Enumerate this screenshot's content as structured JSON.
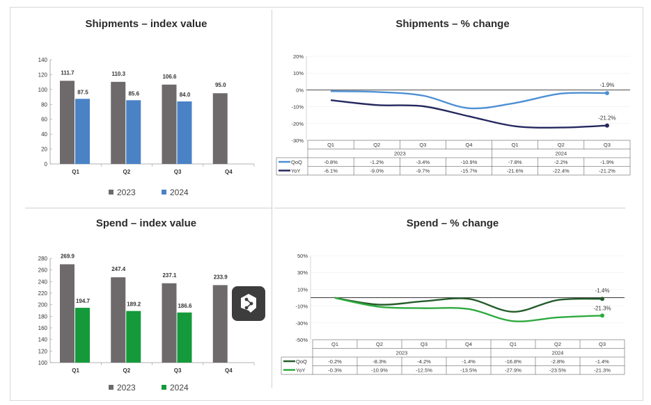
{
  "colors": {
    "gray": "#6e6a6b",
    "blue": "#4a82c6",
    "green": "#159a3b",
    "navy": "#24285e",
    "light_blue": "#4c8fd3",
    "dark_green": "#245c2a",
    "bright_green": "#2daa3e"
  },
  "panels": [
    {
      "title": "Shipments – index value"
    },
    {
      "title": "Shipments – % change"
    },
    {
      "title": "Spend – index value"
    },
    {
      "title": "Spend – % change"
    }
  ],
  "chart_data": [
    {
      "type": "bar",
      "title": "Shipments – index value",
      "categories": [
        "Q1",
        "Q2",
        "Q3",
        "Q4"
      ],
      "series": [
        {
          "name": "2023",
          "values": [
            111.7,
            110.3,
            106.6,
            95.0
          ],
          "labels": [
            "111.7",
            "110.3",
            "106.6",
            "95.0"
          ],
          "color": "#6e6a6b"
        },
        {
          "name": "2024",
          "values": [
            87.5,
            85.6,
            84.0,
            null
          ],
          "labels": [
            "87.5",
            "85.6",
            "84.0",
            ""
          ],
          "color": "#4a82c6"
        }
      ],
      "ylim": [
        0,
        140
      ],
      "yticks": [
        "0",
        "20",
        "40",
        "60",
        "80",
        "100",
        "120",
        "140"
      ],
      "legend": "bottom"
    },
    {
      "type": "line",
      "title": "Shipments – % change",
      "categories": [
        "Q1",
        "Q2",
        "Q3",
        "Q4",
        "Q1",
        "Q2",
        "Q3"
      ],
      "years": [
        "2023",
        "2024"
      ],
      "series": [
        {
          "name": "QoQ",
          "values": [
            -0.8,
            -1.2,
            -3.4,
            -10.9,
            -7.8,
            -2.2,
            -1.9
          ],
          "labels": [
            "-0.8%",
            "-1.2%",
            "-3.4%",
            "-10.9%",
            "-7.8%",
            "-2.2%",
            "-1.9%"
          ],
          "color": "#4c8fd3",
          "end_label": "-1.9%"
        },
        {
          "name": "YoY",
          "values": [
            -6.1,
            -9.0,
            -9.7,
            -15.7,
            -21.6,
            -22.4,
            -21.2
          ],
          "labels": [
            "-6.1%",
            "-9.0%",
            "-9.7%",
            "-15.7%",
            "-21.6%",
            "-22.4%",
            "-21.2%"
          ],
          "color": "#24285e",
          "end_label": "-21.2%"
        }
      ],
      "ylim": [
        -30,
        20
      ],
      "yticks": [
        "20%",
        "10%",
        "0%",
        "-10%",
        "-20%",
        "-30%"
      ],
      "table": true
    },
    {
      "type": "bar",
      "title": "Spend – index value",
      "categories": [
        "Q1",
        "Q2",
        "Q3",
        "Q4"
      ],
      "series": [
        {
          "name": "2023",
          "values": [
            269.9,
            247.4,
            237.1,
            233.9
          ],
          "labels": [
            "269.9",
            "247.4",
            "237.1",
            "233.9"
          ],
          "color": "#6e6a6b"
        },
        {
          "name": "2024",
          "values": [
            194.7,
            189.2,
            186.6,
            null
          ],
          "labels": [
            "194.7",
            "189.2",
            "186.6",
            ""
          ],
          "color": "#159a3b"
        }
      ],
      "ylim": [
        100,
        280
      ],
      "yticks": [
        "100",
        "120",
        "140",
        "160",
        "180",
        "200",
        "220",
        "240",
        "260",
        "280"
      ],
      "legend": "bottom"
    },
    {
      "type": "line",
      "title": "Spend – % change",
      "categories": [
        "Q1",
        "Q2",
        "Q3",
        "Q4",
        "Q1",
        "Q2",
        "Q3"
      ],
      "years": [
        "2023",
        "2024"
      ],
      "series": [
        {
          "name": "QoQ",
          "values": [
            -0.2,
            -8.3,
            -4.2,
            -1.4,
            -16.8,
            -2.8,
            -1.4
          ],
          "labels": [
            "-0.2%",
            "-8.3%",
            "-4.2%",
            "-1.4%",
            "-16.8%",
            "-2.8%",
            "-1.4%"
          ],
          "color": "#245c2a",
          "end_label": "-1.4%"
        },
        {
          "name": "YoY",
          "values": [
            -0.3,
            -10.9,
            -12.5,
            -13.5,
            -27.9,
            -23.5,
            -21.3
          ],
          "labels": [
            "-0.3%",
            "-10.9%",
            "-12.5%",
            "-13.5%",
            "-27.9%",
            "-23.5%",
            "-21.3%"
          ],
          "color": "#2daa3e",
          "end_label": "-21.3%"
        }
      ],
      "ylim": [
        -50,
        50
      ],
      "yticks": [
        "50%",
        "30%",
        "10%",
        "-10%",
        "-30%",
        "-50%"
      ],
      "table": true
    }
  ]
}
